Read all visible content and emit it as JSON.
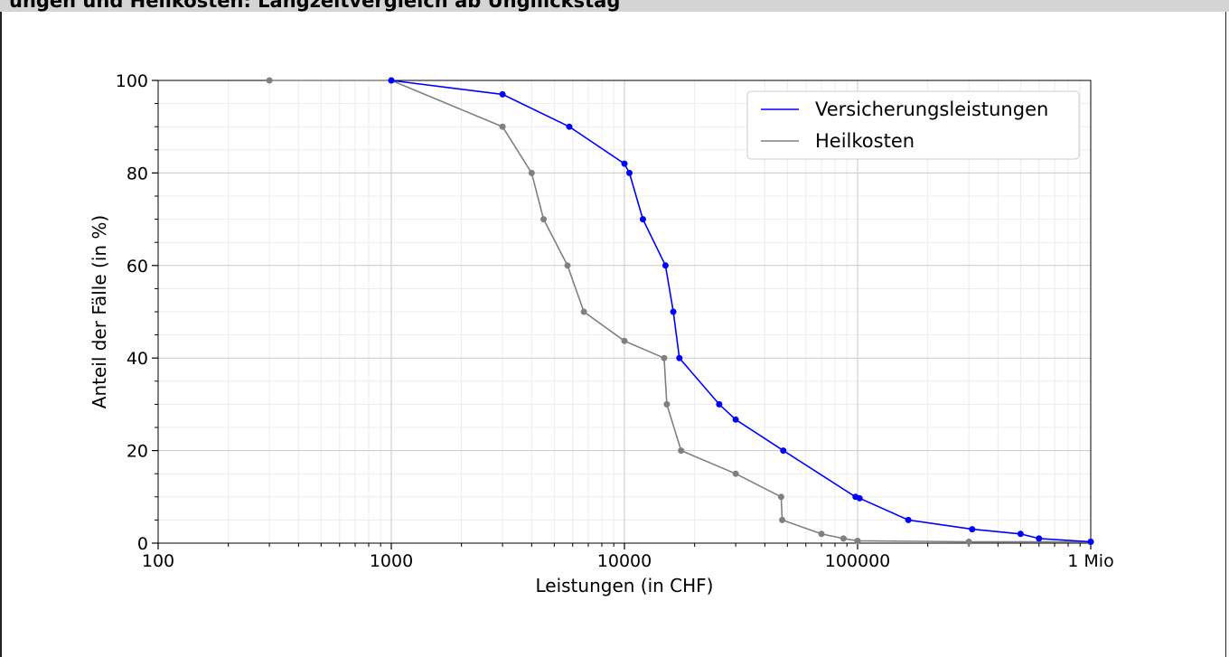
{
  "window": {
    "title": "ungen und Heilkosten: Langzeitvergleich ab Ungliickstag"
  },
  "chart_data": {
    "type": "line",
    "title": "",
    "xlabel": "Leistungen (in CHF)",
    "ylabel": "Anteil der Fälle (in %)",
    "xscale": "log",
    "xlim": [
      100,
      1000000
    ],
    "ylim": [
      0,
      100
    ],
    "grid": true,
    "legend_position": "top-right",
    "x_ticks": [
      {
        "value": 100,
        "label": "100"
      },
      {
        "value": 1000,
        "label": "1000"
      },
      {
        "value": 10000,
        "label": "10000"
      },
      {
        "value": 100000,
        "label": "100000"
      },
      {
        "value": 1000000,
        "label": "1 Mio"
      }
    ],
    "y_ticks": [
      {
        "value": 0,
        "label": "0"
      },
      {
        "value": 20,
        "label": "20"
      },
      {
        "value": 40,
        "label": "40"
      },
      {
        "value": 60,
        "label": "60"
      },
      {
        "value": 80,
        "label": "80"
      },
      {
        "value": 100,
        "label": "100"
      }
    ],
    "series": [
      {
        "name": "Versicherungsleistungen",
        "color": "#0000ff",
        "points": [
          [
            1000,
            100
          ],
          [
            3000,
            97
          ],
          [
            5800,
            90
          ],
          [
            10000,
            82
          ],
          [
            10500,
            80
          ],
          [
            12000,
            70
          ],
          [
            15000,
            60
          ],
          [
            16200,
            50
          ],
          [
            17200,
            40
          ],
          [
            25500,
            30
          ],
          [
            30000,
            26.7
          ],
          [
            48000,
            20
          ],
          [
            98000,
            10
          ],
          [
            102000,
            9.7
          ],
          [
            165000,
            5
          ],
          [
            310000,
            3
          ],
          [
            500000,
            2
          ],
          [
            600000,
            1
          ],
          [
            1000000,
            0.3
          ]
        ]
      },
      {
        "name": "Heilkosten",
        "color": "#808080",
        "points": [
          [
            300,
            100
          ],
          [
            1000,
            100
          ],
          [
            3000,
            90
          ],
          [
            4000,
            80
          ],
          [
            4500,
            70
          ],
          [
            5700,
            60
          ],
          [
            6700,
            50
          ],
          [
            10000,
            43.7
          ],
          [
            14800,
            40
          ],
          [
            15200,
            30
          ],
          [
            17500,
            20
          ],
          [
            30000,
            15
          ],
          [
            47000,
            10
          ],
          [
            47500,
            5
          ],
          [
            70000,
            2
          ],
          [
            87000,
            1
          ],
          [
            100000,
            0.5
          ],
          [
            300000,
            0.3
          ],
          [
            1000000,
            0.3
          ]
        ]
      }
    ]
  }
}
